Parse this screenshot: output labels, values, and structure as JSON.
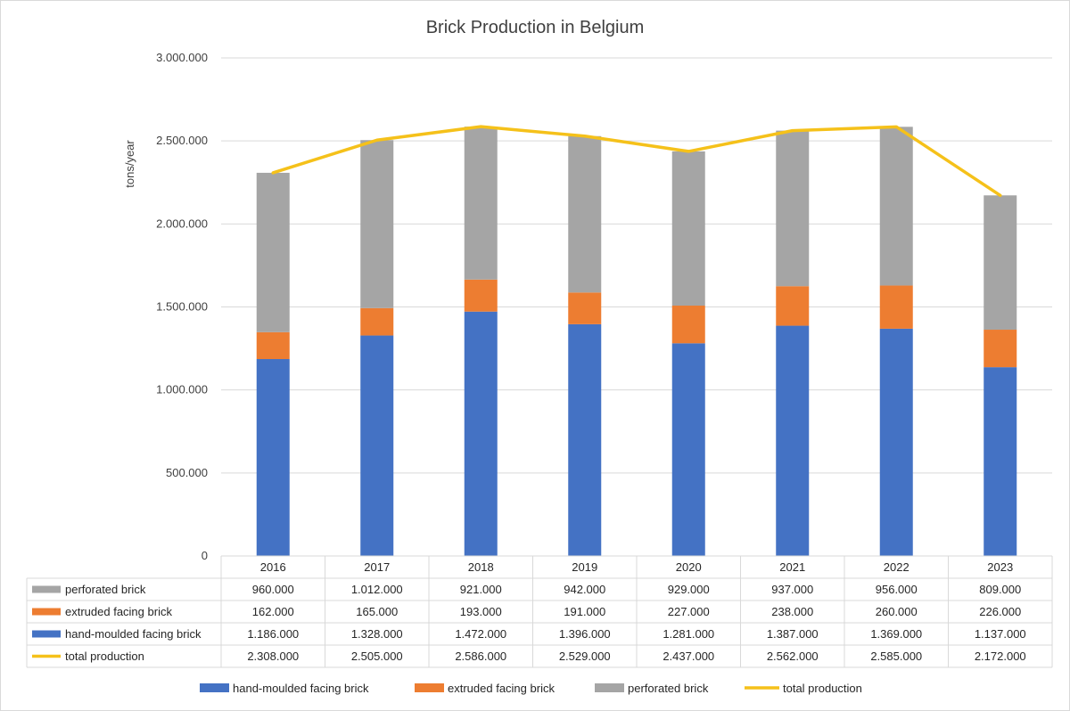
{
  "chart_data": {
    "type": "bar",
    "stacked": true,
    "title": "Brick Production in Belgium",
    "ylabel": "tons/year",
    "xlabel": "",
    "ylim": [
      0,
      3000000
    ],
    "yticks": [
      0,
      500000,
      1000000,
      1500000,
      2000000,
      2500000,
      3000000
    ],
    "ytick_labels": [
      "0",
      "500.000",
      "1.000.000",
      "1.500.000",
      "2.000.000",
      "2.500.000",
      "3.000.000"
    ],
    "grid": true,
    "legend_position": "bottom",
    "categories": [
      "2016",
      "2017",
      "2018",
      "2019",
      "2020",
      "2021",
      "2022",
      "2023"
    ],
    "series": [
      {
        "name": "hand-moulded facing brick",
        "kind": "bar",
        "color": "#4472C4",
        "values": [
          1186000,
          1328000,
          1472000,
          1396000,
          1281000,
          1387000,
          1369000,
          1137000
        ],
        "labels": [
          "1.186.000",
          "1.328.000",
          "1.472.000",
          "1.396.000",
          "1.281.000",
          "1.387.000",
          "1.369.000",
          "1.137.000"
        ]
      },
      {
        "name": "extruded facing brick",
        "kind": "bar",
        "color": "#ED7D31",
        "values": [
          162000,
          165000,
          193000,
          191000,
          227000,
          238000,
          260000,
          226000
        ],
        "labels": [
          "162.000",
          "165.000",
          "193.000",
          "191.000",
          "227.000",
          "238.000",
          "260.000",
          "226.000"
        ]
      },
      {
        "name": "perforated brick",
        "kind": "bar",
        "color": "#A5A5A5",
        "values": [
          960000,
          1012000,
          921000,
          942000,
          929000,
          937000,
          956000,
          809000
        ],
        "labels": [
          "960.000",
          "1.012.000",
          "921.000",
          "942.000",
          "929.000",
          "937.000",
          "956.000",
          "809.000"
        ]
      },
      {
        "name": "total production",
        "kind": "line",
        "color": "#F5C11A",
        "values": [
          2308000,
          2505000,
          2586000,
          2529000,
          2437000,
          2562000,
          2585000,
          2172000
        ],
        "labels": [
          "2.308.000",
          "2.505.000",
          "2.586.000",
          "2.529.000",
          "2.437.000",
          "2.562.000",
          "2.585.000",
          "2.172.000"
        ]
      }
    ],
    "table_row_order": [
      "perforated brick",
      "extruded facing brick",
      "hand-moulded facing brick",
      "total production"
    ],
    "legend_order": [
      "hand-moulded facing brick",
      "extruded facing brick",
      "perforated brick",
      "total production"
    ]
  },
  "colors": {
    "gridline": "#D9D9D9",
    "table_border": "#D9D9D9",
    "text": "#404040"
  }
}
